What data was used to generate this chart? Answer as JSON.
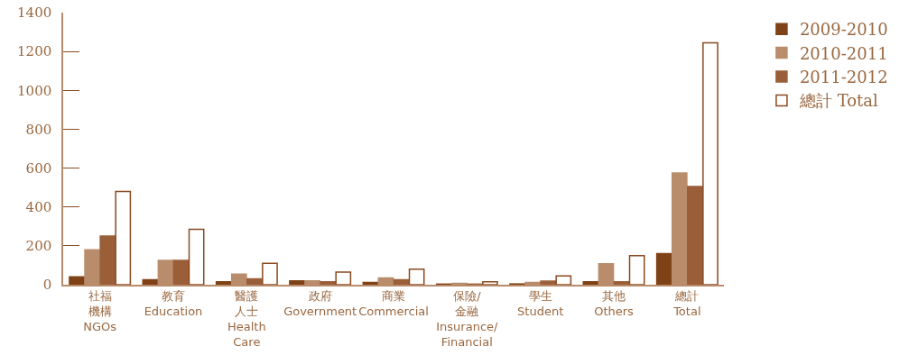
{
  "chart_data": {
    "type": "bar",
    "categories": [
      "社福機構\nNGOs",
      "教育\nEducation",
      "醫護人士\nHealth\nCare",
      "政府\nGovernment",
      "商業\nCommercial",
      "保險/金融\nInsurance/\nFinancial",
      "學生\nStudent",
      "其他\nOthers",
      "總計\nTotal"
    ],
    "series": [
      {
        "name": "2009-2010",
        "color": "#7f4216",
        "values": [
          40,
          25,
          15,
          20,
          12,
          3,
          4,
          15,
          160
        ]
      },
      {
        "name": "2010-2011",
        "color": "#b98d6c",
        "values": [
          180,
          125,
          55,
          20,
          35,
          7,
          12,
          108,
          575
        ]
      },
      {
        "name": "2011-2012",
        "color": "#9a5f38",
        "values": [
          250,
          125,
          30,
          15,
          25,
          3,
          18,
          15,
          505
        ]
      },
      {
        "name": "總計 Total",
        "color": "#ffffff",
        "values": [
          480,
          285,
          110,
          65,
          80,
          15,
          45,
          150,
          1245
        ]
      }
    ],
    "ylim": [
      0,
      1400
    ],
    "yticks": [
      0,
      200,
      400,
      600,
      800,
      1000,
      1200,
      1400
    ],
    "grid": false,
    "legend": "top right"
  }
}
